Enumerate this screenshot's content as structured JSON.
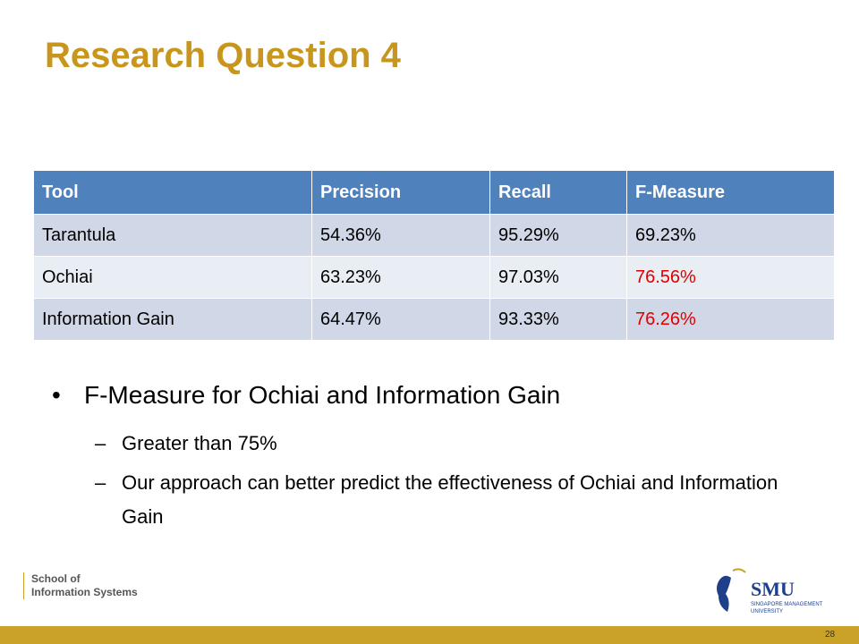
{
  "title": "Research Question 4",
  "table": {
    "header": [
      "Tool",
      "Precision",
      "Recall",
      "F-Measure"
    ],
    "rows": [
      [
        "Tarantula",
        "54.36%",
        "95.29%",
        "69.23%"
      ],
      [
        "Ochiai",
        "63.23%",
        "97.03%",
        "76.56%"
      ],
      [
        "Information Gain",
        "64.47%",
        "93.33%",
        "76.26%"
      ]
    ]
  },
  "bullets": [
    {
      "text": "F-Measure for Ochiai and Information Gain",
      "sub": [
        "Greater than 75%",
        "Our approach can better predict the effectiveness of Ochiai and Information Gain"
      ]
    }
  ],
  "footer": {
    "school_line1": "School of",
    "school_line2": "Information Systems",
    "logo": "SMU",
    "logo_sub1": "SINGAPORE MANAGEMENT",
    "logo_sub2": "UNIVERSITY",
    "page_number": "28"
  }
}
